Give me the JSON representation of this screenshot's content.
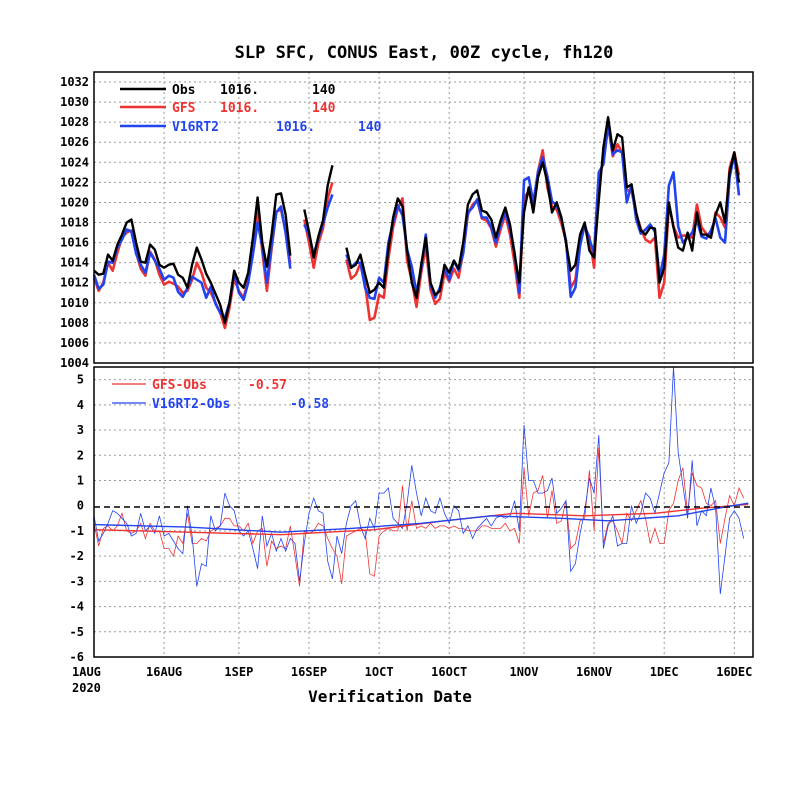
{
  "title": "SLP SFC, CONUS East, 00Z cycle, fh120",
  "xlabel": "Verification Date",
  "year_label": "2020",
  "colors": {
    "obs": "#000000",
    "gfs": "#ee3333",
    "v16": "#2244ee",
    "grid": "#9a9a9a"
  },
  "chart_data": [
    {
      "type": "line",
      "panel": "top",
      "ylabel": "",
      "ylim": [
        1004,
        1033
      ],
      "yticks": [
        1004,
        1006,
        1008,
        1010,
        1012,
        1014,
        1016,
        1018,
        1020,
        1022,
        1024,
        1026,
        1028,
        1030,
        1032
      ],
      "x_date_ticks": [
        "1AUG",
        "16AUG",
        "1SEP",
        "16SEP",
        "1OCT",
        "16OCT",
        "1NOV",
        "16NOV",
        "1DEC",
        "16DEC"
      ],
      "legend": [
        {
          "label": "Obs",
          "mean": "1016.",
          "count": "140"
        },
        {
          "label": "GFS",
          "mean": "1016.",
          "count": "140"
        },
        {
          "label": "V16RT2",
          "mean": "1016.",
          "count": "140"
        }
      ],
      "series": [
        {
          "name": "Obs",
          "color": "#000000",
          "start": "2020-08-01",
          "values": [
            1013.2,
            1012.8,
            1012.9,
            1014.8,
            1014.2,
            1015.8,
            1016.8,
            1018.0,
            1018.3,
            1016.0,
            1014.1,
            1014.0,
            1015.8,
            1015.3,
            1013.8,
            1013.5,
            1013.8,
            1013.9,
            1012.8,
            1012.5,
            1011.5,
            1013.8,
            1015.5,
            1014.3,
            1012.9,
            1012.0,
            1010.9,
            1009.8,
            1008.0,
            1010.0,
            1013.2,
            1012.0,
            1011.5,
            1013.0,
            1016.5,
            1020.5,
            1016.0,
            1013.6,
            1016.8,
            1020.8,
            1020.9,
            1018.8,
            1014.7,
            null,
            null,
            1019.3,
            1017.1,
            1014.5,
            1016.6,
            1018.2,
            1021.7,
            1023.7,
            null,
            null,
            1015.5,
            1013.5,
            1013.8,
            1014.8,
            1012.8,
            1011.0,
            1011.3,
            1012.0,
            1011.5,
            1015.3,
            1018.5,
            1020.4,
            1019.6,
            1015.2,
            1012.0,
            1010.5,
            1013.8,
            1016.5,
            1012.0,
            1010.8,
            1011.2,
            1013.8,
            1013.0,
            1014.2,
            1013.4,
            1016.0,
            1019.8,
            1020.8,
            1021.2,
            1019.2,
            1019.0,
            1018.3,
            1016.5,
            1018.2,
            1019.5,
            1017.8,
            1014.8,
            1012.0,
            1019.0,
            1021.5,
            1019.0,
            1022.5,
            1024.0,
            1022.0,
            1019.0,
            1020.0,
            1018.5,
            1016.0,
            1013.2,
            1013.8,
            1016.8,
            1018.0,
            1015.2,
            1014.5,
            1020.2,
            1025.5,
            1028.5,
            1025.2,
            1026.8,
            1026.5,
            1021.5,
            1021.8,
            1019.0,
            1017.2,
            1016.8,
            1017.5,
            1017.4,
            1012.0,
            1013.5,
            1020.0,
            1017.5,
            1015.5,
            1015.2,
            1017.0,
            1015.2,
            1019.0,
            1016.8,
            1016.8,
            1016.5,
            1018.8,
            1020.0,
            1018.0,
            1023.0,
            1025.0,
            1022.0
          ]
        },
        {
          "name": "GFS",
          "color": "#ee3333",
          "start": "2020-08-01",
          "values": [
            1012.5,
            1011.2,
            1012.0,
            1014.0,
            1013.2,
            1015.0,
            1016.5,
            1017.0,
            1017.2,
            1015.0,
            1013.4,
            1012.7,
            1015.1,
            1014.3,
            1012.8,
            1011.8,
            1012.1,
            1011.9,
            1011.6,
            1011.0,
            1011.2,
            1012.3,
            1014.0,
            1013.0,
            1011.5,
            1011.0,
            1010.0,
            1009.0,
            1007.5,
            1009.5,
            1012.4,
            1011.2,
            1010.5,
            1012.3,
            1015.0,
            1019.5,
            1015.1,
            1011.2,
            1015.4,
            1019.1,
            1019.3,
            1017.1,
            1013.9,
            null,
            null,
            1018.3,
            1016.0,
            1013.5,
            1015.9,
            1017.4,
            1020.4,
            1022.0,
            null,
            null,
            1014.3,
            1012.4,
            1012.8,
            1013.9,
            1011.8,
            1008.3,
            1008.5,
            1010.8,
            1010.5,
            1014.4,
            1017.5,
            1019.4,
            1020.4,
            1014.2,
            1012.2,
            1009.6,
            1013.0,
            1015.6,
            1011.3,
            1009.9,
            1010.4,
            1013.0,
            1012.1,
            1013.4,
            1012.5,
            1015.1,
            1018.8,
            1019.8,
            1020.2,
            1018.4,
            1018.2,
            1017.4,
            1015.6,
            1017.3,
            1018.8,
            1016.8,
            1013.9,
            1010.5,
            1020.5,
            1021.1,
            1019.5,
            1023.1,
            1025.2,
            1021.5,
            1019.6,
            1019.3,
            1017.9,
            1016.2,
            1011.5,
            1012.3,
            1016.2,
            1017.5,
            1016.6,
            1013.5,
            1022.5,
            1024.0,
            1027.8,
            1024.6,
            1025.8,
            1025.0,
            1021.2,
            1021.2,
            1018.8,
            1017.4,
            1016.3,
            1016.0,
            1016.5,
            1010.5,
            1012.0,
            1019.8,
            1017.6,
            1016.5,
            1016.7,
            1016.7,
            1016.5,
            1019.8,
            1017.5,
            1016.9,
            1016.5,
            1019.0,
            1018.5,
            1017.5,
            1023.4,
            1025.0,
            1022.7
          ]
        },
        {
          "name": "V16RT2",
          "color": "#2244ee",
          "start": "2020-08-01",
          "values": [
            1012.8,
            1011.4,
            1011.8,
            1014.1,
            1014.0,
            1015.5,
            1016.3,
            1017.3,
            1017.1,
            1014.9,
            1013.8,
            1013.0,
            1015.0,
            1014.2,
            1013.4,
            1012.3,
            1012.7,
            1012.5,
            1011.1,
            1010.6,
            1011.5,
            1012.6,
            1012.3,
            1012.0,
            1010.5,
            1011.6,
            1009.9,
            1009.0,
            1008.5,
            1010.0,
            1013.0,
            1011.0,
            1010.3,
            1012.0,
            1014.8,
            1018.0,
            1015.6,
            1012.0,
            1015.7,
            1019.0,
            1019.6,
            1017.0,
            1013.4,
            null,
            null,
            1017.8,
            1016.8,
            1014.8,
            1016.4,
            1017.9,
            1019.5,
            1020.8,
            null,
            null,
            1014.8,
            1013.5,
            1014.0,
            1014.0,
            1011.5,
            1010.5,
            1010.4,
            1012.5,
            1012.0,
            1016.0,
            1018.0,
            1019.7,
            1018.7,
            1015.3,
            1013.6,
            1011.0,
            1013.4,
            1016.8,
            1011.8,
            1010.5,
            1011.5,
            1013.5,
            1012.3,
            1014.2,
            1013.2,
            1014.9,
            1019.0,
            1019.5,
            1020.3,
            1018.5,
            1018.5,
            1017.5,
            1016.0,
            1017.8,
            1019.0,
            1017.4,
            1015.0,
            1011.0,
            1022.2,
            1022.5,
            1020.0,
            1023.0,
            1024.5,
            1022.6,
            1020.1,
            1019.7,
            1018.4,
            1016.2,
            1010.6,
            1011.5,
            1015.7,
            1017.8,
            1016.3,
            1015.0,
            1023.0,
            1023.8,
            1027.7,
            1024.8,
            1025.2,
            1025.0,
            1020.0,
            1021.8,
            1018.3,
            1016.9,
            1017.3,
            1017.8,
            1017.1,
            1012.5,
            1014.8,
            1021.7,
            1023.0,
            1017.6,
            1016.0,
            1016.5,
            1017.0,
            1018.2,
            1016.6,
            1016.4,
            1017.2,
            1018.4,
            1016.5,
            1016.0,
            1022.5,
            1024.8,
            1020.7
          ]
        }
      ]
    },
    {
      "type": "line",
      "panel": "bottom",
      "ylabel": "",
      "ylim": [
        -6,
        5.5
      ],
      "yticks": [
        -6,
        -5,
        -4,
        -3,
        -2,
        -1,
        0,
        1,
        2,
        3,
        4,
        5
      ],
      "x_date_ticks": [
        "1AUG",
        "16AUG",
        "1SEP",
        "16SEP",
        "1OCT",
        "16OCT",
        "1NOV",
        "16NOV",
        "1DEC",
        "16DEC"
      ],
      "legend": [
        {
          "label": "GFS-Obs",
          "mean": "-0.57"
        },
        {
          "label": "V16RT2-Obs",
          "mean": "-0.58"
        }
      ],
      "series": [
        {
          "name": "GFS-Obs",
          "color": "#ee3333",
          "start": "2020-08-01",
          "daily_values": [
            -0.7,
            -1.6,
            -0.9,
            -0.8,
            -1.0,
            -0.8,
            -0.3,
            -1.0,
            -1.1,
            -1.0,
            -0.7,
            -1.3,
            -0.7,
            -1.0,
            -1.0,
            -1.7,
            -1.7,
            -2.0,
            -1.2,
            -1.5,
            -0.3,
            -1.5,
            -1.5,
            -1.3,
            -1.4,
            -1.0,
            -0.9,
            -0.8,
            -0.5,
            -0.5,
            -0.8,
            -0.8,
            -1.0,
            -0.7,
            -1.5,
            -1.0,
            -0.9,
            -2.4,
            -1.4,
            -1.7,
            -1.6,
            -1.7,
            -0.8,
            -2.0,
            -3.2,
            -1.0,
            -1.1,
            -1.0,
            -0.7,
            -0.8,
            -1.3,
            -1.7,
            -2.0,
            -3.1,
            -1.2,
            -1.1,
            -1.0,
            -0.9,
            -1.0,
            -2.7,
            -2.8,
            -1.2,
            -1.0,
            -0.9,
            -1.0,
            -1.0,
            0.8,
            -1.0,
            0.2,
            -0.9,
            -0.8,
            -0.9,
            -0.7,
            -0.9,
            -0.8,
            -0.8,
            -0.9,
            -0.8,
            -0.9,
            -0.9,
            -1.0,
            -1.0,
            -1.0,
            -0.8,
            -0.8,
            -0.9,
            -0.9,
            -0.9,
            -0.7,
            -1.0,
            -0.9,
            -1.5,
            1.5,
            -0.4,
            0.5,
            0.6,
            1.2,
            -0.5,
            0.6,
            -0.7,
            -0.6,
            0.2,
            -1.7,
            -1.5,
            -0.6,
            -0.5,
            1.4,
            -1.0,
            2.3,
            -1.5,
            -0.7,
            -0.6,
            -1.0,
            -1.5,
            -0.3,
            -0.6,
            -0.2,
            0.2,
            -0.5,
            -1.5,
            -0.9,
            -1.5,
            -1.5,
            -0.2,
            0.1,
            1.0,
            1.5,
            -0.3,
            1.3,
            0.8,
            0.7,
            0.1,
            0.0,
            0.2,
            -1.5,
            -0.5,
            0.4,
            0.0,
            0.7,
            0.3
          ]
        },
        {
          "name": "V16RT2-Obs",
          "color": "#2244ee",
          "start": "2020-08-01",
          "daily_values": [
            -0.4,
            -1.4,
            -1.1,
            -0.7,
            -0.2,
            -0.3,
            -0.5,
            -0.7,
            -1.2,
            -1.1,
            -0.3,
            -1.0,
            -0.8,
            -1.1,
            -0.4,
            -1.2,
            -1.1,
            -1.4,
            -1.7,
            -1.9,
            0.0,
            -1.2,
            -3.2,
            -2.3,
            -2.4,
            -0.4,
            -1.0,
            -0.8,
            0.5,
            0.0,
            -0.2,
            -1.0,
            -1.2,
            -1.0,
            -1.7,
            -2.5,
            -0.4,
            -1.6,
            -1.1,
            -1.8,
            -1.3,
            -1.8,
            -1.3,
            -1.5,
            -3.0,
            -1.5,
            -0.3,
            0.3,
            -0.2,
            -0.3,
            -2.2,
            -2.9,
            -1.2,
            -1.9,
            -0.7,
            0.0,
            0.2,
            -0.8,
            -1.3,
            -0.5,
            -0.9,
            0.5,
            0.5,
            0.7,
            -0.5,
            -0.7,
            -0.9,
            0.1,
            1.6,
            0.5,
            -0.4,
            0.3,
            -0.2,
            -0.3,
            0.3,
            -0.3,
            -0.7,
            0.0,
            -0.2,
            -1.1,
            -0.8,
            -1.3,
            -0.9,
            -0.7,
            -0.5,
            -0.8,
            -0.5,
            -0.4,
            -0.5,
            -0.4,
            0.2,
            -1.0,
            3.2,
            1.0,
            1.0,
            0.5,
            0.5,
            0.6,
            1.1,
            -0.3,
            -0.1,
            0.2,
            -2.6,
            -2.3,
            -1.1,
            -0.2,
            1.1,
            0.5,
            2.8,
            -1.7,
            -0.8,
            -0.4,
            -1.6,
            -1.5,
            -1.5,
            0.0,
            -0.7,
            -0.3,
            0.5,
            0.3,
            -0.3,
            0.5,
            1.3,
            1.7,
            5.5,
            2.1,
            0.8,
            -0.5,
            1.8,
            -0.8,
            -0.2,
            -0.4,
            0.7,
            -0.1,
            -3.5,
            -2.0,
            -0.5,
            -0.2,
            -0.5,
            -1.3
          ]
        },
        {
          "name": "GFS-Obs mean",
          "color": "#ee3333",
          "smooth": [
            [
              0,
              -0.95
            ],
            [
              20,
              -1.05
            ],
            [
              40,
              -1.15
            ],
            [
              60,
              -0.95
            ],
            [
              75,
              -0.6
            ],
            [
              90,
              -0.3
            ],
            [
              105,
              -0.4
            ],
            [
              120,
              -0.3
            ],
            [
              130,
              -0.1
            ],
            [
              140,
              0.05
            ]
          ]
        },
        {
          "name": "V16RT2-Obs mean",
          "color": "#2244ee",
          "smooth": [
            [
              0,
              -0.75
            ],
            [
              20,
              -0.85
            ],
            [
              40,
              -1.05
            ],
            [
              55,
              -0.9
            ],
            [
              70,
              -0.7
            ],
            [
              85,
              -0.4
            ],
            [
              100,
              -0.5
            ],
            [
              110,
              -0.6
            ],
            [
              125,
              -0.4
            ],
            [
              135,
              -0.05
            ],
            [
              140,
              0.1
            ]
          ]
        }
      ]
    }
  ]
}
